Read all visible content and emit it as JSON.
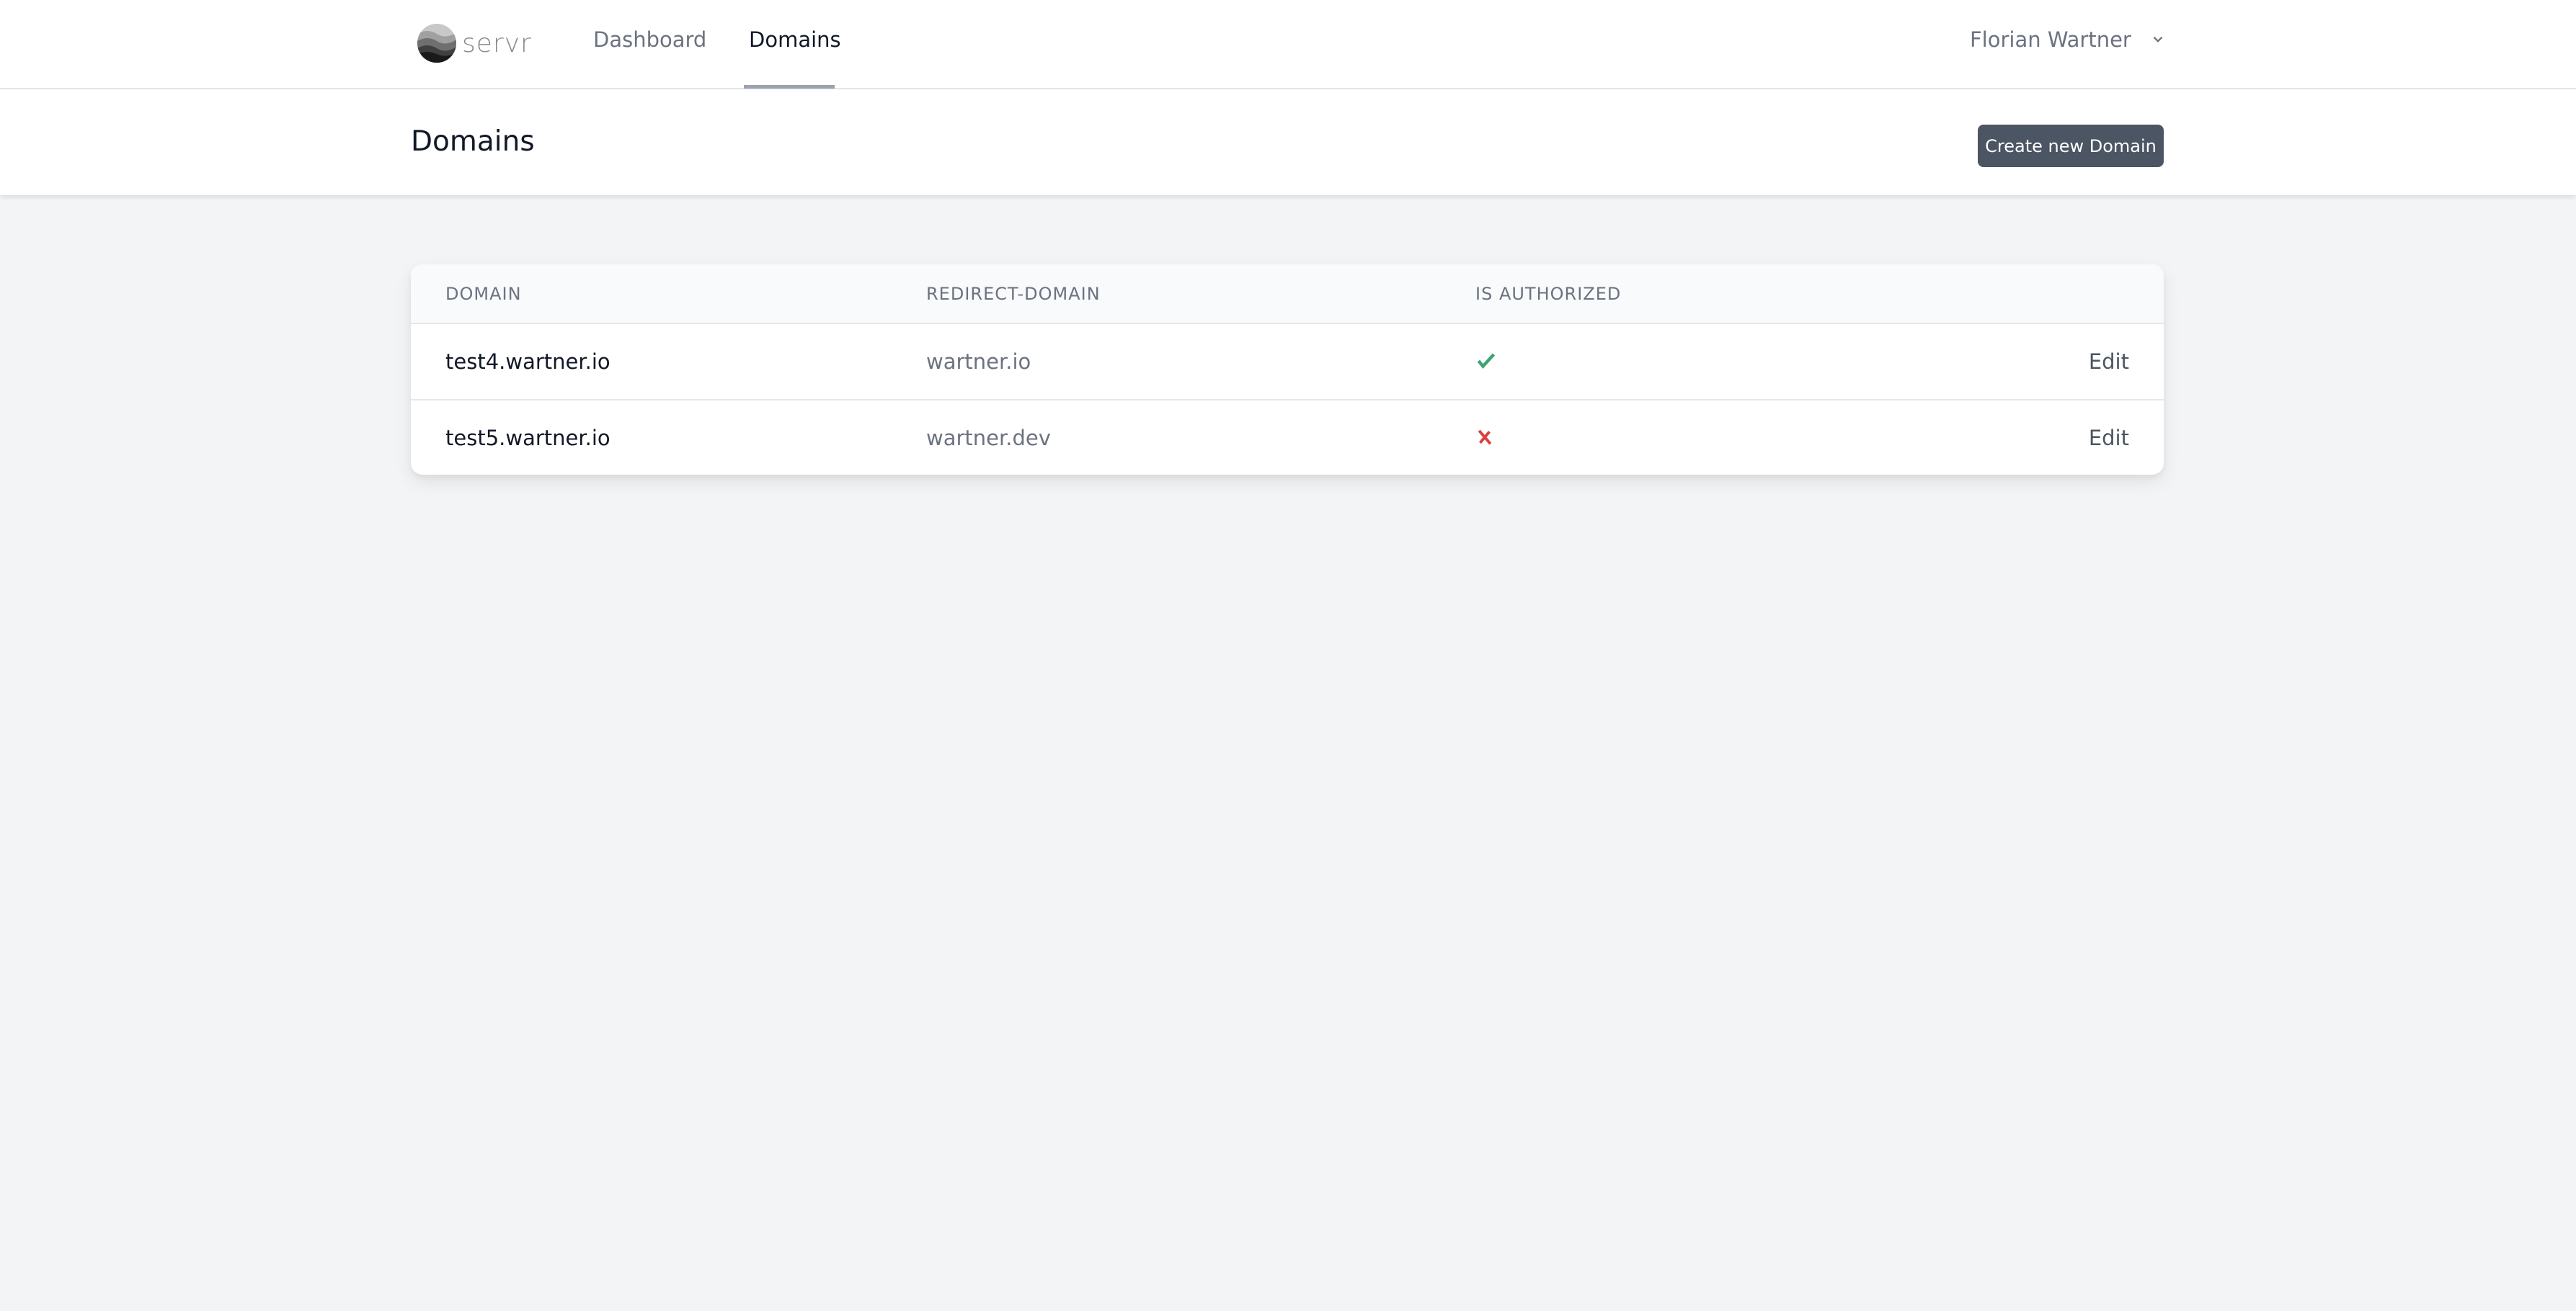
{
  "nav": {
    "logo_text": "servr",
    "links": [
      {
        "label": "Dashboard",
        "active": false
      },
      {
        "label": "Domains",
        "active": true
      }
    ],
    "user_name": "Florian Wartner"
  },
  "header": {
    "title": "Domains",
    "create_button": "Create new Domain"
  },
  "table": {
    "columns": [
      "DOMAIN",
      "REDIRECT-DOMAIN",
      "IS AUTHORIZED",
      ""
    ],
    "rows": [
      {
        "domain": "test4.wartner.io",
        "redirect": "wartner.io",
        "authorized": true,
        "action": "Edit"
      },
      {
        "domain": "test5.wartner.io",
        "redirect": "wartner.dev",
        "authorized": false,
        "action": "Edit"
      }
    ]
  },
  "colors": {
    "success": "#3fa373",
    "danger": "#dc3e3e",
    "button": "#4b5563",
    "background": "#f3f4f6"
  }
}
